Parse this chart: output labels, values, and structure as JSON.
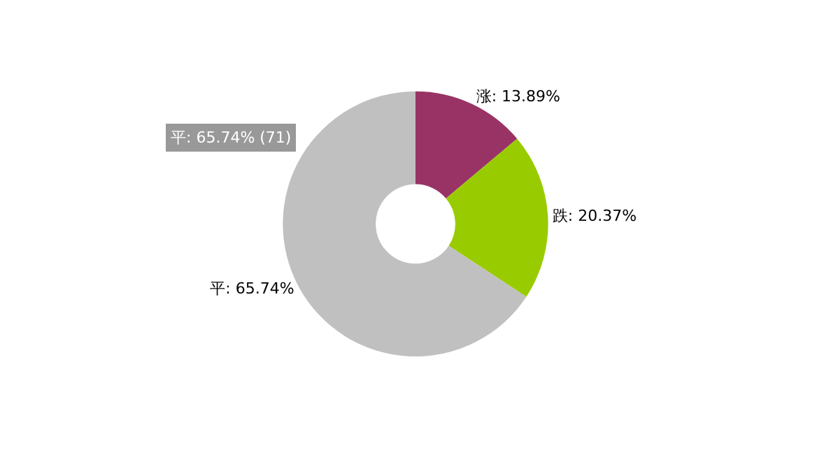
{
  "chart_data": {
    "type": "donut",
    "categories": [
      "涨",
      "跌",
      "平"
    ],
    "values": [
      13.89,
      20.37,
      65.74
    ],
    "colors": [
      "#993366",
      "#99cc00",
      "#c0c0c0"
    ],
    "value_labels": [
      "13.89%",
      "20.37%",
      "65.74%"
    ],
    "annotations": [
      "平: 65.74% (71)"
    ],
    "legend": false
  }
}
